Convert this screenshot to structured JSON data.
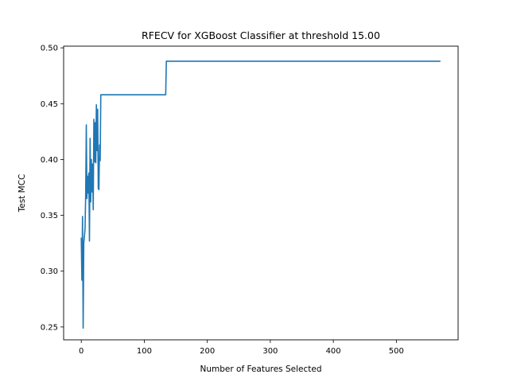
{
  "chart_data": {
    "type": "line",
    "title": "RFECV for XGBoost Classifier at threshold 15.00",
    "xlabel": "Number of Features Selected",
    "ylabel": "Test MCC",
    "xlim": [
      -28,
      598
    ],
    "ylim": [
      0.2385,
      0.5015
    ],
    "xticks": [
      0,
      100,
      200,
      300,
      400,
      500
    ],
    "xtick_labels": [
      "0",
      "100",
      "200",
      "300",
      "400",
      "500"
    ],
    "yticks": [
      0.25,
      0.3,
      0.35,
      0.4,
      0.45,
      0.5
    ],
    "ytick_labels": [
      "0.25",
      "0.30",
      "0.35",
      "0.40",
      "0.45",
      "0.50"
    ],
    "grid": false,
    "legend": "none",
    "line_color": "#1f77b4",
    "series": [
      {
        "x": [
          0,
          1,
          2,
          3,
          4,
          5,
          6,
          7,
          8,
          9,
          10,
          11,
          12,
          13,
          14,
          15,
          16,
          17,
          18,
          19,
          20,
          21,
          22,
          23,
          24,
          25,
          26,
          27,
          28,
          29,
          30,
          31,
          32,
          134,
          135,
          570
        ],
        "values": [
          0.33,
          0.292,
          0.349,
          0.249,
          0.325,
          0.331,
          0.338,
          0.368,
          0.431,
          0.365,
          0.385,
          0.37,
          0.388,
          0.327,
          0.419,
          0.362,
          0.4,
          0.371,
          0.396,
          0.355,
          0.436,
          0.398,
          0.433,
          0.397,
          0.449,
          0.408,
          0.445,
          0.374,
          0.373,
          0.413,
          0.399,
          0.458,
          0.458,
          0.458,
          0.488,
          0.488
        ]
      }
    ]
  }
}
